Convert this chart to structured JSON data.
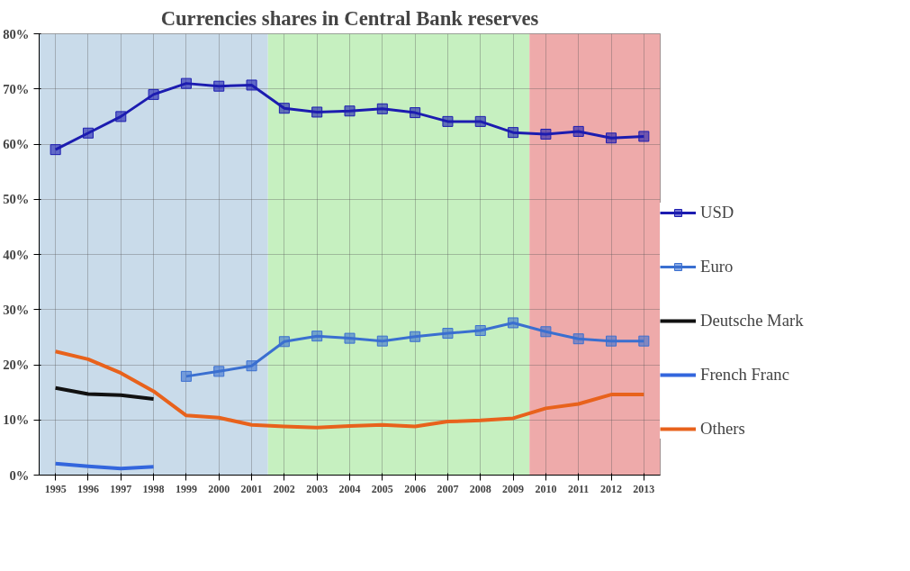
{
  "chart_data": {
    "type": "line",
    "title": "Currencies shares in Central Bank reserves",
    "x": [
      1995,
      1996,
      1997,
      1998,
      1999,
      2000,
      2001,
      2002,
      2003,
      2004,
      2005,
      2006,
      2007,
      2008,
      2009,
      2010,
      2011,
      2012,
      2013
    ],
    "xlim": [
      1994.5,
      2013.5
    ],
    "xticks": [
      1995,
      1996,
      1997,
      1998,
      1999,
      2000,
      2001,
      2002,
      2003,
      2004,
      2005,
      2006,
      2007,
      2008,
      2009,
      2010,
      2011,
      2012,
      2013
    ],
    "ylim": [
      0,
      80
    ],
    "yticks": [
      {
        "value": 0,
        "label": "0%"
      },
      {
        "value": 10,
        "label": "10%"
      },
      {
        "value": 20,
        "label": "20%"
      },
      {
        "value": 30,
        "label": "30%"
      },
      {
        "value": 40,
        "label": "40%"
      },
      {
        "value": 50,
        "label": "50%"
      },
      {
        "value": 60,
        "label": "60%"
      },
      {
        "value": 70,
        "label": "70%"
      },
      {
        "value": 80,
        "label": "80%"
      }
    ],
    "grid": true,
    "legend": "right",
    "series": [
      {
        "name": "USD",
        "color": "#1c1cb0",
        "marker": "square",
        "values": [
          59,
          62,
          65,
          69,
          71,
          70.5,
          70.7,
          66.5,
          65.8,
          66,
          66.4,
          65.7,
          64.1,
          64.1,
          62.1,
          61.8,
          62.3,
          61.1,
          61.4
        ]
      },
      {
        "name": "Euro",
        "color": "#3a6fd0",
        "marker": "square",
        "values": [
          null,
          null,
          null,
          null,
          17.9,
          18.8,
          19.8,
          24.2,
          25.2,
          24.8,
          24.3,
          25.1,
          25.7,
          26.2,
          27.6,
          26,
          24.7,
          24.3,
          24.3
        ]
      },
      {
        "name": "Deutsche Mark",
        "color": "#111111",
        "marker": "none",
        "values": [
          15.8,
          14.7,
          14.5,
          13.8,
          null,
          null,
          null,
          null,
          null,
          null,
          null,
          null,
          null,
          null,
          null,
          null,
          null,
          null,
          null
        ]
      },
      {
        "name": "French Franc",
        "color": "#3366dd",
        "marker": "none",
        "values": [
          2.1,
          1.6,
          1.2,
          1.5,
          null,
          null,
          null,
          null,
          null,
          null,
          null,
          null,
          null,
          null,
          null,
          null,
          null,
          null,
          null
        ]
      },
      {
        "name": "Others",
        "color": "#e8621c",
        "marker": "none",
        "values": [
          22.4,
          21,
          18.5,
          15.2,
          10.8,
          10.4,
          9.1,
          8.8,
          8.6,
          8.9,
          9.1,
          8.8,
          9.7,
          9.9,
          10.3,
          12.1,
          12.9,
          14.6,
          14.6
        ]
      }
    ],
    "bands": [
      {
        "axis": "x",
        "from": 1994.5,
        "to": 2001.5,
        "color": "#c9dbea"
      },
      {
        "axis": "x",
        "from": 2001.5,
        "to": 2009.5,
        "color": "#c6f0c0"
      },
      {
        "axis": "x",
        "from": 2009.5,
        "to": 2013.5,
        "color": "#eeaaaa"
      }
    ]
  }
}
